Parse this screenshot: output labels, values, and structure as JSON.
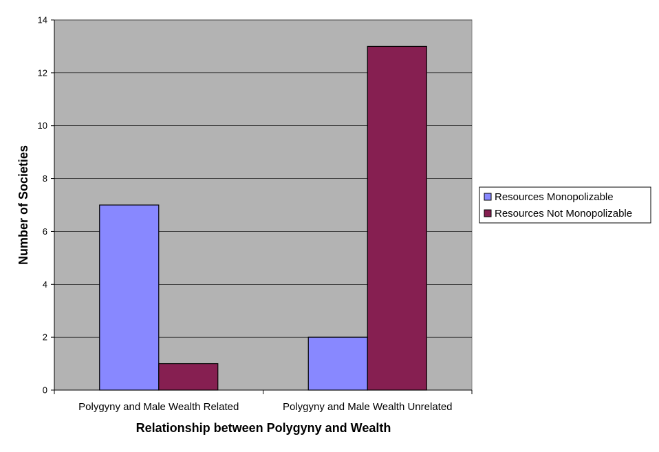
{
  "chart_data": {
    "type": "bar",
    "title": "",
    "xlabel": "Relationship between Polygyny and Wealth",
    "ylabel": "Number of Societies",
    "categories": [
      "Polygyny and Male Wealth Related",
      "Polygyny and Male Wealth Unrelated"
    ],
    "series": [
      {
        "name": "Resources Monopolizable",
        "values": [
          7,
          2
        ],
        "color": "#8888ff"
      },
      {
        "name": "Resources Not Monopolizable",
        "values": [
          1,
          13
        ],
        "color": "#861f51"
      }
    ],
    "ylim": [
      0,
      14
    ],
    "yticks": [
      0,
      2,
      4,
      6,
      8,
      10,
      12,
      14
    ],
    "ytick_labels": [
      "0",
      "2",
      "4",
      "6",
      "8",
      "10",
      "12",
      "14"
    ],
    "grid": true,
    "legend_position": "right",
    "plot_background": "#b3b3b3"
  }
}
